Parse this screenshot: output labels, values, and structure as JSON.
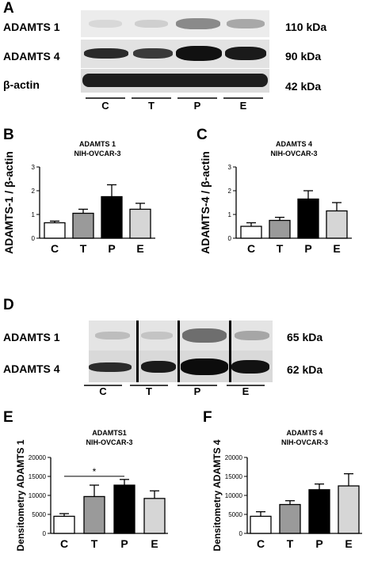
{
  "panels": {
    "A": "A",
    "B": "B",
    "C": "C",
    "D": "D",
    "E": "E",
    "F": "F"
  },
  "blotA": {
    "rows": [
      {
        "label": "ADAMTS 1",
        "size": "110 kDa"
      },
      {
        "label": "ADAMTS 4",
        "size": "90 kDa"
      },
      {
        "label": "β-actin",
        "size": "42 kDa"
      }
    ],
    "lanes": [
      "C",
      "T",
      "P",
      "E"
    ]
  },
  "blotD": {
    "rows": [
      {
        "label": "ADAMTS 1",
        "size": "65 kDa"
      },
      {
        "label": "ADAMTS 4",
        "size": "62 kDa"
      }
    ],
    "lanes": [
      "C",
      "T",
      "P",
      "E"
    ]
  },
  "chart_data": [
    {
      "id": "B",
      "type": "bar",
      "title": "ADAMTS 1",
      "subtitle": "NIH-OVCAR-3",
      "ylabel": "ADAMTS-1 / β-actin",
      "categories": [
        "C",
        "T",
        "P",
        "E"
      ],
      "values": [
        0.65,
        1.05,
        1.75,
        1.22
      ],
      "errors": [
        0.07,
        0.17,
        0.5,
        0.25
      ],
      "colors": [
        "#ffffff",
        "#9a9a9a",
        "#000000",
        "#d6d6d6"
      ],
      "ylim": [
        0,
        3
      ],
      "yticks": [
        "0",
        "1",
        "2",
        "3"
      ]
    },
    {
      "id": "C",
      "type": "bar",
      "title": "ADAMTS 4",
      "subtitle": "NIH-OVCAR-3",
      "ylabel": "ADAMTS-4 / β-actin",
      "categories": [
        "C",
        "T",
        "P",
        "E"
      ],
      "values": [
        0.5,
        0.75,
        1.65,
        1.15
      ],
      "errors": [
        0.15,
        0.13,
        0.35,
        0.35
      ],
      "colors": [
        "#ffffff",
        "#9a9a9a",
        "#000000",
        "#d6d6d6"
      ],
      "ylim": [
        0,
        3
      ],
      "yticks": [
        "0",
        "1",
        "2",
        "3"
      ]
    },
    {
      "id": "E",
      "type": "bar",
      "title": "ADAMTS1",
      "subtitle": "NIH-OVCAR-3",
      "ylabel": "Densitometry ADAMTS 1",
      "categories": [
        "C",
        "T",
        "P",
        "E"
      ],
      "values": [
        4500,
        9700,
        12700,
        9200
      ],
      "errors": [
        700,
        3000,
        1500,
        2000
      ],
      "colors": [
        "#ffffff",
        "#9a9a9a",
        "#000000",
        "#d6d6d6"
      ],
      "ylim": [
        0,
        20000
      ],
      "yticks": [
        "0",
        "5000",
        "10000",
        "15000",
        "20000"
      ],
      "annotation": "*"
    },
    {
      "id": "F",
      "type": "bar",
      "title": "ADAMTS 4",
      "subtitle": "NIH-OVCAR-3",
      "ylabel": "Densitometry ADAMTS 4",
      "categories": [
        "C",
        "T",
        "P",
        "E"
      ],
      "values": [
        4500,
        7600,
        11500,
        12500
      ],
      "errors": [
        1200,
        1000,
        1500,
        3200
      ],
      "colors": [
        "#ffffff",
        "#9a9a9a",
        "#000000",
        "#d6d6d6"
      ],
      "ylim": [
        0,
        20000
      ],
      "yticks": [
        "0",
        "5000",
        "10000",
        "15000",
        "20000"
      ]
    }
  ]
}
